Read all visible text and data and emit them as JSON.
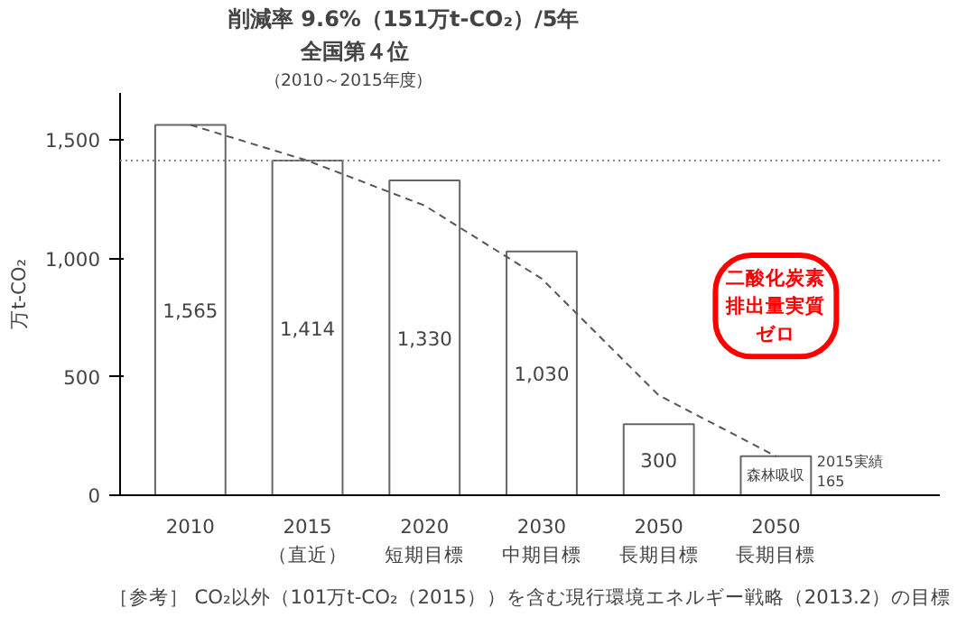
{
  "chart_data": {
    "type": "bar",
    "ylabel": "万t-CO₂",
    "categories": [
      "2010",
      "2015\n（直近）",
      "2020\n短期目標",
      "2030\n中期目標",
      "2050\n長期目標",
      "2050\n長期目標"
    ],
    "series": [
      {
        "color": "#ffffff",
        "values": [
          1565,
          1414,
          1330,
          1030,
          300,
          165
        ],
        "value_labels": [
          "1,565",
          "1,414",
          "1,330",
          "1,030",
          "300",
          "森林吸収"
        ]
      },
      {
        "type": "line",
        "color": "#555555",
        "line_style": "dashed",
        "values": [
          1565,
          1414,
          1224,
          915,
          422,
          165
        ]
      }
    ],
    "ylim": [
      0,
      1700
    ],
    "yticks": [
      0,
      500,
      {
        "value": 1000,
        "label": "1,000"
      },
      {
        "value": 1500,
        "label": "1,500"
      }
    ],
    "ref_lines": [
      {
        "axis": "y",
        "value": 1414,
        "color": "#888888",
        "line_style": "dotted"
      }
    ],
    "grid": false,
    "annotations": [
      "削減率 9.6%（151万t-CO₂）/5年",
      "全国第４位",
      "（2010～2015年度）",
      "二酸化炭素排出量実質ゼロ",
      "2015実績\n165",
      "［参考］ CO₂以外（101万t-CO₂（2015））を含む現行環境エネルギー戦略（2013.2）の目標"
    ]
  }
}
